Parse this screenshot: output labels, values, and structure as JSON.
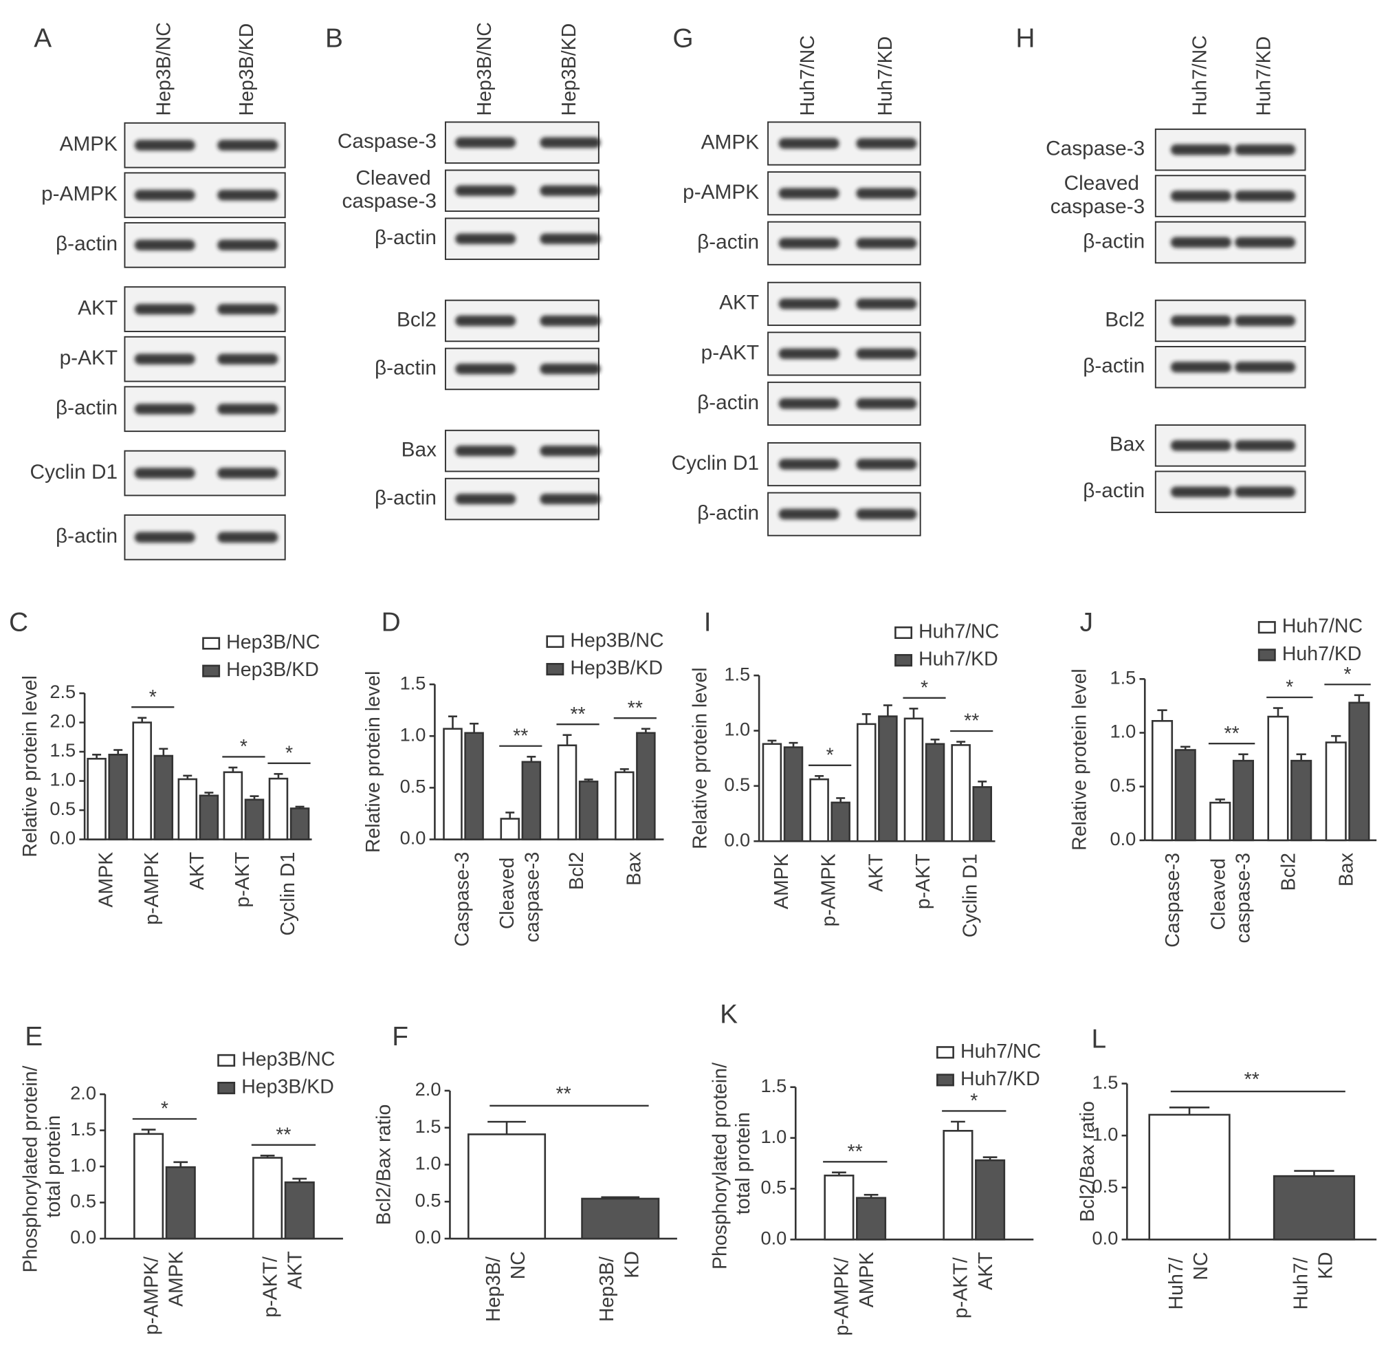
{
  "blots": [
    {
      "label": "A",
      "lanes": [
        "Hep3B/NC",
        "Hep3B/KD"
      ],
      "groups": [
        [
          "AMPK",
          "p-AMPK",
          "β-actin"
        ],
        [
          "AKT",
          "p-AKT",
          "β-actin"
        ],
        [
          "Cyclin D1"
        ],
        [
          "β-actin"
        ]
      ]
    },
    {
      "label": "B",
      "lanes": [
        "Hep3B/NC",
        "Hep3B/KD"
      ],
      "groups": [
        [
          "Caspase-3",
          "Cleaved\ncaspase-3",
          "β-actin"
        ],
        [
          "Bcl2",
          "β-actin"
        ],
        [
          "Bax",
          "β-actin"
        ]
      ]
    },
    {
      "label": "G",
      "lanes": [
        "Huh7/NC",
        "Huh7/KD"
      ],
      "groups": [
        [
          "AMPK",
          "p-AMPK",
          "β-actin"
        ],
        [
          "AKT",
          "p-AKT",
          "β-actin"
        ],
        [
          "Cyclin D1",
          "β-actin"
        ]
      ]
    },
    {
      "label": "H",
      "lanes": [
        "Huh7/NC",
        "Huh7/KD"
      ],
      "groups": [
        [
          "Caspase-3",
          "Cleaved\ncaspase-3",
          "β-actin"
        ],
        [
          "Bcl2",
          "β-actin"
        ],
        [
          "Bax",
          "β-actin"
        ]
      ]
    }
  ],
  "chart_data": [
    {
      "type": "bar",
      "label": "C",
      "ylabel": "Relative protein level",
      "categories": [
        "AMPK",
        "p-AMPK",
        "AKT",
        "p-AKT",
        "Cyclin D1"
      ],
      "series": [
        {
          "name": "Hep3B/NC",
          "color": "#ffffff",
          "values": [
            1.38,
            2.0,
            1.03,
            1.15,
            1.04
          ],
          "errors": [
            0.07,
            0.08,
            0.06,
            0.08,
            0.08
          ]
        },
        {
          "name": "Hep3B/KD",
          "color": "#555555",
          "values": [
            1.45,
            1.43,
            0.75,
            0.68,
            0.53
          ],
          "errors": [
            0.08,
            0.12,
            0.05,
            0.06,
            0.03
          ]
        }
      ],
      "significance": [
        null,
        "*",
        null,
        "*",
        "*"
      ],
      "ylim": [
        0,
        2.5
      ],
      "yticks": [
        {
          "value": 0,
          "label": "0.0"
        },
        0.5,
        {
          "value": 1,
          "label": "1.0"
        },
        1.5,
        {
          "value": 2,
          "label": "2.0"
        },
        2.5
      ],
      "legend": "upper right"
    },
    {
      "type": "bar",
      "label": "D",
      "ylabel": "Relative protein level",
      "categories": [
        "Caspase-3",
        "Cleaved\ncaspase-3",
        "Bcl2",
        "Bax"
      ],
      "series": [
        {
          "name": "Hep3B/NC",
          "color": "#ffffff",
          "values": [
            1.07,
            0.2,
            0.91,
            0.65
          ],
          "errors": [
            0.12,
            0.06,
            0.1,
            0.03
          ]
        },
        {
          "name": "Hep3B/KD",
          "color": "#555555",
          "values": [
            1.03,
            0.75,
            0.56,
            1.03
          ],
          "errors": [
            0.09,
            0.05,
            0.02,
            0.04
          ]
        }
      ],
      "significance": [
        null,
        "**",
        "**",
        "**"
      ],
      "ylim": [
        0,
        1.5
      ],
      "yticks": [
        {
          "value": 0,
          "label": "0.0"
        },
        0.5,
        {
          "value": 1,
          "label": "1.0"
        },
        1.5
      ],
      "legend": "upper right"
    },
    {
      "type": "bar",
      "label": "E",
      "ylabel": "Phosphorylated protein/\ntotal protein",
      "categories": [
        "p-AMPK/\nAMPK",
        "p-AKT/\nAKT"
      ],
      "series": [
        {
          "name": "Hep3B/NC",
          "color": "#ffffff",
          "values": [
            1.45,
            1.12
          ],
          "errors": [
            0.06,
            0.03
          ]
        },
        {
          "name": "Hep3B/KD",
          "color": "#555555",
          "values": [
            0.99,
            0.78
          ],
          "errors": [
            0.07,
            0.05
          ]
        }
      ],
      "significance": [
        "*",
        "**"
      ],
      "ylim": [
        0,
        2
      ],
      "yticks": [
        {
          "value": 0,
          "label": "0.0"
        },
        0.5,
        {
          "value": 1,
          "label": "1.0"
        },
        1.5,
        {
          "value": 2,
          "label": "2.0"
        }
      ],
      "legend": "upper right"
    },
    {
      "type": "bar",
      "label": "F",
      "ylabel": "Bcl2/Bax ratio",
      "categories": [
        "Hep3B/\nNC",
        "Hep3B/\nKD"
      ],
      "values": [
        1.41,
        0.54
      ],
      "errors": [
        0.17,
        0.02
      ],
      "colors": [
        "#ffffff",
        "#555555"
      ],
      "significance": "**",
      "ylim": [
        0,
        2
      ],
      "yticks": [
        {
          "value": 0,
          "label": "0.0"
        },
        0.5,
        {
          "value": 1,
          "label": "1.0"
        },
        1.5,
        {
          "value": 2,
          "label": "2.0"
        }
      ]
    },
    {
      "type": "bar",
      "label": "I",
      "ylabel": "Relative protein level",
      "categories": [
        "AMPK",
        "p-AMPK",
        "AKT",
        "p-AKT",
        "Cyclin D1"
      ],
      "series": [
        {
          "name": "Huh7/NC",
          "color": "#ffffff",
          "values": [
            0.88,
            0.56,
            1.06,
            1.11,
            0.87
          ],
          "errors": [
            0.03,
            0.03,
            0.09,
            0.09,
            0.03
          ]
        },
        {
          "name": "Huh7/KD",
          "color": "#555555",
          "values": [
            0.85,
            0.35,
            1.13,
            0.88,
            0.49
          ],
          "errors": [
            0.04,
            0.04,
            0.1,
            0.04,
            0.05
          ]
        }
      ],
      "significance": [
        null,
        "*",
        null,
        "*",
        "**"
      ],
      "ylim": [
        0,
        1.5
      ],
      "yticks": [
        {
          "value": 0,
          "label": "0.0"
        },
        0.5,
        {
          "value": 1,
          "label": "1.0"
        },
        1.5
      ],
      "legend": "upper right"
    },
    {
      "type": "bar",
      "label": "J",
      "ylabel": "Relative protein level",
      "categories": [
        "Caspase-3",
        "Cleaved\ncaspase-3",
        "Bcl2",
        "Bax"
      ],
      "series": [
        {
          "name": "Huh7/NC",
          "color": "#ffffff",
          "values": [
            1.11,
            0.35,
            1.15,
            0.91
          ],
          "errors": [
            0.1,
            0.03,
            0.08,
            0.06
          ]
        },
        {
          "name": "Huh7/KD",
          "color": "#555555",
          "values": [
            0.84,
            0.74,
            0.74,
            1.28
          ],
          "errors": [
            0.03,
            0.06,
            0.06,
            0.07
          ]
        }
      ],
      "significance": [
        null,
        "**",
        "*",
        "*"
      ],
      "ylim": [
        0,
        1.5
      ],
      "yticks": [
        {
          "value": 0,
          "label": "0.0"
        },
        0.5,
        {
          "value": 1,
          "label": "1.0"
        },
        1.5
      ],
      "legend": "upper right"
    },
    {
      "type": "bar",
      "label": "K",
      "ylabel": "Phosphorylated protein/\ntotal protein",
      "categories": [
        "p-AMPK/\nAMPK",
        "p-AKT/\nAKT"
      ],
      "series": [
        {
          "name": "Huh7/NC",
          "color": "#ffffff",
          "values": [
            0.63,
            1.07
          ],
          "errors": [
            0.03,
            0.09
          ]
        },
        {
          "name": "Huh7/KD",
          "color": "#555555",
          "values": [
            0.41,
            0.78
          ],
          "errors": [
            0.03,
            0.03
          ]
        }
      ],
      "significance": [
        "**",
        "*"
      ],
      "ylim": [
        0,
        1.5
      ],
      "yticks": [
        {
          "value": 0,
          "label": "0.0"
        },
        0.5,
        {
          "value": 1,
          "label": "1.0"
        },
        1.5
      ],
      "legend": "upper right"
    },
    {
      "type": "bar",
      "label": "L",
      "ylabel": "Bcl2/Bax ratio",
      "categories": [
        "Huh7/\nNC",
        "Huh7/\nKD"
      ],
      "values": [
        1.2,
        0.61
      ],
      "errors": [
        0.07,
        0.05
      ],
      "colors": [
        "#ffffff",
        "#555555"
      ],
      "significance": "**",
      "ylim": [
        0,
        1.5
      ],
      "yticks": [
        {
          "value": 0,
          "label": "0.0"
        },
        0.5,
        {
          "value": 1,
          "label": "1.0"
        },
        1.5
      ]
    }
  ]
}
